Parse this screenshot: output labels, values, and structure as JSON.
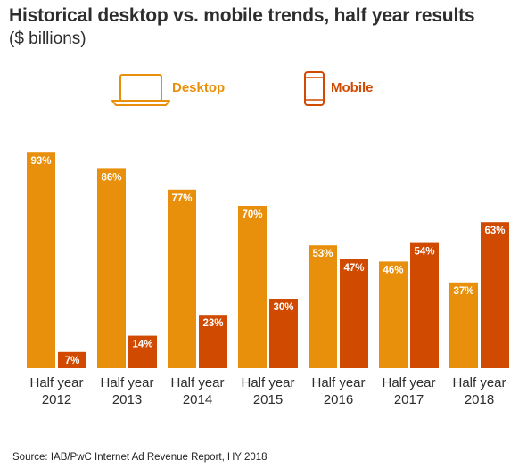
{
  "title": "Historical desktop vs. mobile trends, half year results",
  "subtitle": "($ billions)",
  "source": "Source: IAB/PwC Internet Ad Revenue Report, HY 2018",
  "colors": {
    "desktop": "#E8900C",
    "mobile": "#D04A02",
    "text": "#2d2d2d"
  },
  "legend": [
    {
      "label": "Desktop",
      "icon": "laptop-icon"
    },
    {
      "label": "Mobile",
      "icon": "smartphone-icon"
    }
  ],
  "chart_data": {
    "type": "bar",
    "title": "Historical desktop vs. mobile trends, half year results",
    "subtitle": "($ billions)",
    "categories": [
      [
        "Half year",
        "2012"
      ],
      [
        "Half year",
        "2013"
      ],
      [
        "Half year",
        "2014"
      ],
      [
        "Half year",
        "2015"
      ],
      [
        "Half year",
        "2016"
      ],
      [
        "Half year",
        "2017"
      ],
      [
        "Half year",
        "2018"
      ]
    ],
    "series": [
      {
        "name": "Desktop",
        "values": [
          93,
          86,
          77,
          70,
          53,
          46,
          37
        ],
        "labels": [
          "93%",
          "86%",
          "77%",
          "70%",
          "53%",
          "46%",
          "37%"
        ]
      },
      {
        "name": "Mobile",
        "values": [
          7,
          14,
          23,
          30,
          47,
          54,
          63
        ],
        "labels": [
          "7%",
          "14%",
          "23%",
          "30%",
          "47%",
          "54%",
          "63%"
        ]
      }
    ],
    "ylim": [
      0,
      100
    ],
    "grid": false,
    "legend_position": "top"
  }
}
